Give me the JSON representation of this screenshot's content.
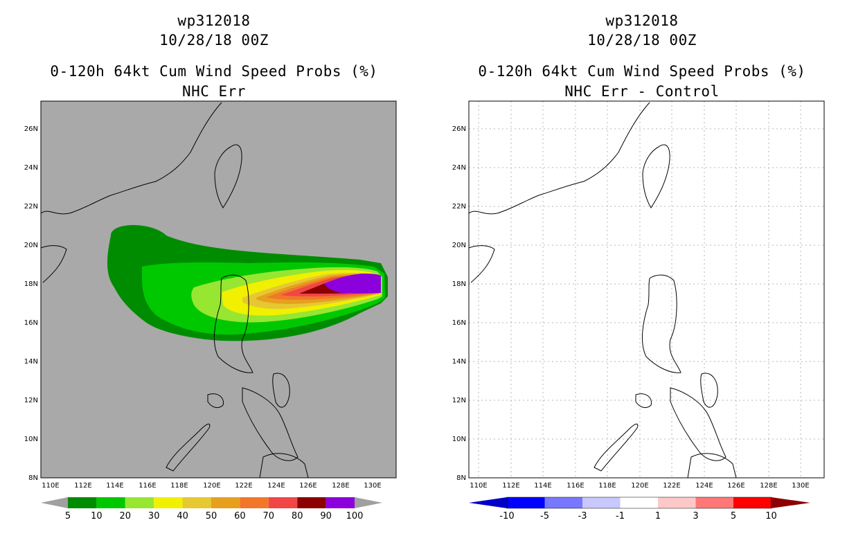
{
  "left": {
    "title_line1": "wp312018",
    "title_line2": "10/28/18 00Z",
    "title_line3": "0-120h 64kt Cum Wind Speed Probs (%)",
    "title_line4": "NHC Err",
    "background_color": "#a9a9a9",
    "colorbar": {
      "labels": [
        "5",
        "10",
        "20",
        "30",
        "40",
        "50",
        "60",
        "70",
        "80",
        "90",
        "100"
      ],
      "colors": [
        "#008c00",
        "#00c800",
        "#96e632",
        "#f0f000",
        "#e6c832",
        "#e6a01e",
        "#f07828",
        "#f04646",
        "#8c0000",
        "#8c00dc"
      ],
      "end_color": "#a0a0a0"
    }
  },
  "right": {
    "title_line1": "wp312018",
    "title_line2": "10/28/18 00Z",
    "title_line3": "0-120h 64kt Cum Wind Speed Probs (%)",
    "title_line4": "NHC Err - Control",
    "background_color": "#ffffff",
    "colorbar": {
      "labels": [
        "-10",
        "-5",
        "-3",
        "-1",
        "1",
        "3",
        "5",
        "10"
      ],
      "colors": [
        "#0000c8",
        "#0000ff",
        "#7878ff",
        "#c8c8ff",
        "#ffffff",
        "#ffc8c8",
        "#ff7878",
        "#ff0000",
        "#8c0000"
      ],
      "start_color": "#0000c8",
      "end_color": "#8c0000"
    }
  },
  "axes": {
    "lat_labels": [
      "8N",
      "10N",
      "12N",
      "14N",
      "16N",
      "18N",
      "20N",
      "22N",
      "24N",
      "26N"
    ],
    "lon_labels": [
      "110E",
      "112E",
      "114E",
      "116E",
      "118E",
      "120E",
      "122E",
      "124E",
      "126E",
      "128E",
      "130E"
    ]
  },
  "colors": {
    "p5": "#008c00",
    "p10": "#00c800",
    "p20": "#96e632",
    "p30": "#f0f000",
    "p40": "#e6c832",
    "p50": "#e6a01e",
    "p60": "#f07828",
    "p70": "#f04646",
    "p80": "#8c0000",
    "p90": "#8c00dc",
    "coast": "#000000",
    "grid": "#b4b4b4"
  }
}
